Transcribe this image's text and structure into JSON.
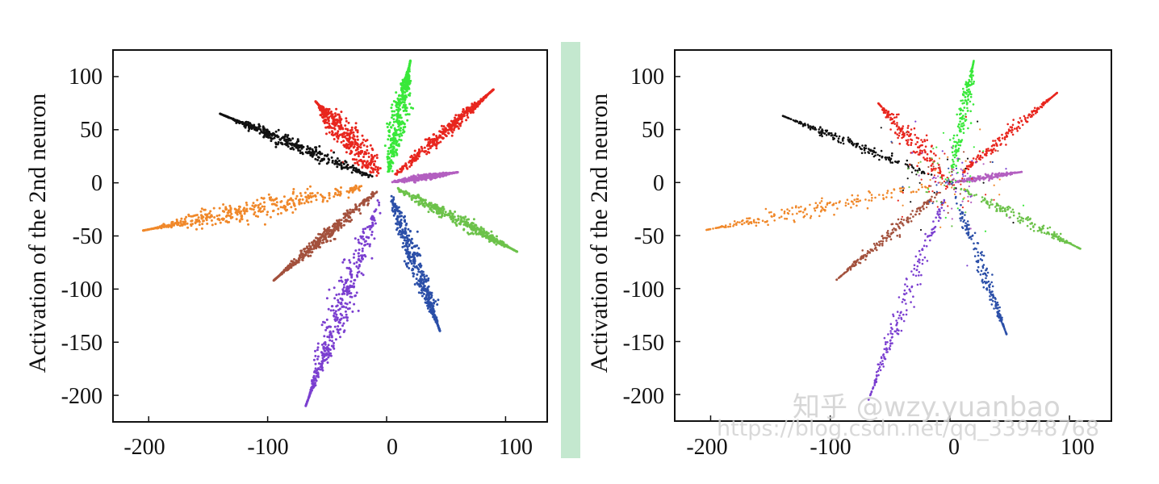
{
  "chart_data": [
    {
      "type": "scatter",
      "ylabel": "Activation of the 2nd neuron",
      "xlim": [
        -230,
        135
      ],
      "ylim": [
        -225,
        125
      ],
      "x_ticks": [
        -200,
        -100,
        0,
        100
      ],
      "x_tick_labels": [
        "-200",
        "-100",
        "0",
        "100"
      ],
      "y_ticks": [
        100,
        50,
        0,
        -50,
        -100,
        -150,
        -200
      ],
      "y_tick_labels": [
        "100",
        "50",
        "0",
        "-50",
        "-100",
        "-150",
        "-200"
      ],
      "grid": false,
      "density": "dense",
      "clusters": [
        {
          "color": "#39e83a",
          "tip": [
            20,
            115
          ],
          "width": 7
        },
        {
          "color": "#e8261e",
          "tip": [
            -60,
            77
          ],
          "width": 12
        },
        {
          "color": "#e8261e",
          "tip": [
            90,
            88
          ],
          "width": 5
        },
        {
          "color": "#111111",
          "tip": [
            -140,
            65
          ],
          "width": 6
        },
        {
          "color": "#b35fc0",
          "tip": [
            60,
            10
          ],
          "width": 2.5
        },
        {
          "color": "#f0882a",
          "tip": [
            -205,
            -45
          ],
          "width": 10
        },
        {
          "color": "#6cc24a",
          "tip": [
            110,
            -65
          ],
          "width": 5.5
        },
        {
          "color": "#a3513d",
          "tip": [
            -95,
            -92
          ],
          "width": 5
        },
        {
          "color": "#2b4fa8",
          "tip": [
            45,
            -140
          ],
          "width": 7
        },
        {
          "color": "#7b3fd0",
          "tip": [
            -68,
            -210
          ],
          "width": 9
        }
      ]
    },
    {
      "type": "scatter",
      "ylabel": "Activation of the 2nd neuron",
      "xlim": [
        -230,
        135
      ],
      "ylim": [
        -225,
        125
      ],
      "x_ticks": [
        -200,
        -100,
        0,
        100
      ],
      "x_tick_labels": [
        "-200",
        "-100",
        "0",
        "100"
      ],
      "y_ticks": [
        100,
        50,
        0,
        -50,
        -100,
        -150,
        -200
      ],
      "y_tick_labels": [
        "100",
        "50",
        "0",
        "-50",
        "-100",
        "-150",
        "-200"
      ],
      "grid": false,
      "density": "sparse",
      "clusters": [
        {
          "color": "#39e83a",
          "tip": [
            20,
            115
          ],
          "width": 6
        },
        {
          "color": "#e8261e",
          "tip": [
            -60,
            75
          ],
          "width": 10
        },
        {
          "color": "#e8261e",
          "tip": [
            90,
            85
          ],
          "width": 4.5
        },
        {
          "color": "#111111",
          "tip": [
            -140,
            63
          ],
          "width": 5
        },
        {
          "color": "#b35fc0",
          "tip": [
            60,
            10
          ],
          "width": 2.5
        },
        {
          "color": "#f0882a",
          "tip": [
            -205,
            -45
          ],
          "width": 8
        },
        {
          "color": "#6cc24a",
          "tip": [
            110,
            -63
          ],
          "width": 5
        },
        {
          "color": "#a3513d",
          "tip": [
            -95,
            -92
          ],
          "width": 4.5
        },
        {
          "color": "#2b4fa8",
          "tip": [
            48,
            -145
          ],
          "width": 5
        },
        {
          "color": "#7b3fd0",
          "tip": [
            -68,
            -205
          ],
          "width": 7
        }
      ]
    }
  ],
  "separator_color": "#c4e8cf",
  "watermark": {
    "line1": "知乎 @wzy.yuanbao",
    "line2": "https://blog.csdn.net/qq_33948768"
  }
}
